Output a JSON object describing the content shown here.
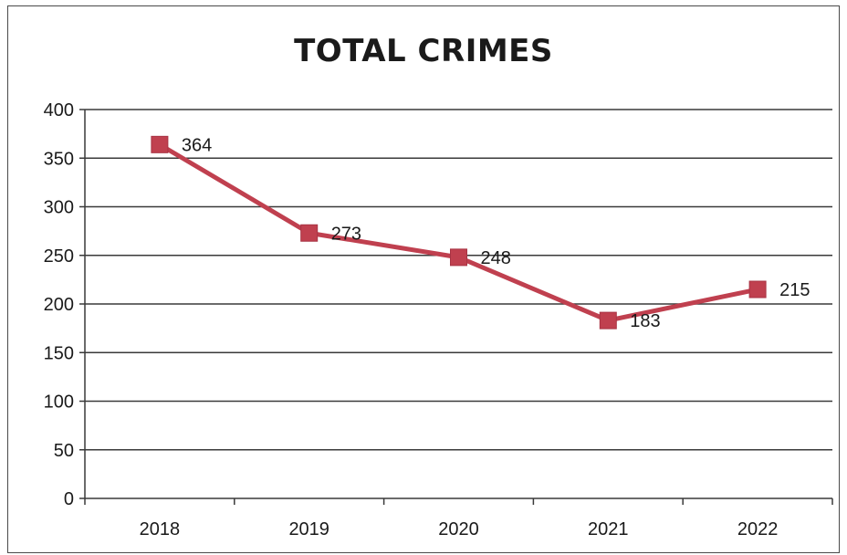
{
  "chart_data": {
    "type": "line",
    "title": "TOTAL CRIMES",
    "xlabel": "",
    "ylabel": "",
    "categories": [
      "2018",
      "2019",
      "2020",
      "2021",
      "2022"
    ],
    "series": [
      {
        "values": [
          364,
          273,
          248,
          183,
          215
        ],
        "color": "#c0404f"
      }
    ],
    "data_labels": [
      "364",
      "273",
      "248",
      "183",
      "215"
    ],
    "y_ticks": [
      "0",
      "50",
      "100",
      "150",
      "200",
      "250",
      "300",
      "350",
      "400"
    ],
    "ylim": [
      0,
      400
    ],
    "grid": true,
    "legend": "none",
    "marker": "square"
  }
}
